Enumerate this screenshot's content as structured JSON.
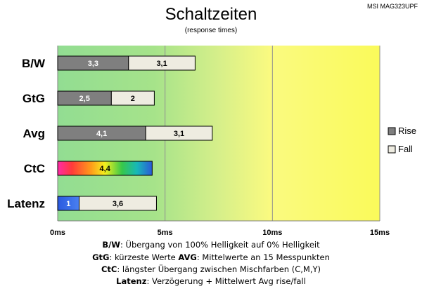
{
  "model_label": "MSI MAG323UPF",
  "footer": {
    "line1": {
      "key": "B/W",
      "text": ":  Übergang von 100% Helligkeit auf 0% Helligkeit"
    },
    "line2": {
      "key1": "GtG",
      "text1": ": kürzeste  Werte",
      "key2": "AVG",
      "text2": ": Mittelwerte  an 15 Messpunkten"
    },
    "line3": {
      "key": "CtC",
      "text": ": längster Übergang  zwischen Mischfarben  (C,M,Y)"
    },
    "line4": {
      "key": "Latenz",
      "text": ": Verzögerung  + Mittelwert  Avg rise/fall"
    }
  },
  "chart_data": {
    "type": "bar",
    "orientation": "horizontal",
    "stacked": true,
    "title": "Schaltzeiten",
    "subtitle": "(response times)",
    "categories": [
      "B/W",
      "GtG",
      "Avg",
      "CtC",
      "Latenz"
    ],
    "series": [
      {
        "name": "Rise",
        "values": [
          3.3,
          2.5,
          4.1,
          4.4,
          1
        ],
        "labels": [
          "3,3",
          "2,5",
          "4,1",
          "4,4",
          "1"
        ],
        "color": "#7f7f7f"
      },
      {
        "name": "Fall",
        "values": [
          3.1,
          2,
          3.1,
          null,
          3.6
        ],
        "labels": [
          "3,1",
          "2",
          "3,1",
          "",
          "3,6"
        ],
        "color": "#eeece1"
      }
    ],
    "xlim": [
      0,
      15
    ],
    "xticks": [
      0,
      5,
      10,
      15
    ],
    "xtick_labels": [
      "0ms",
      "5ms",
      "10ms",
      "15ms"
    ],
    "grid": true,
    "legend_position": "right",
    "special_colors": {
      "CtC": "rainbow",
      "Latenz": "#3f6fe0"
    }
  }
}
